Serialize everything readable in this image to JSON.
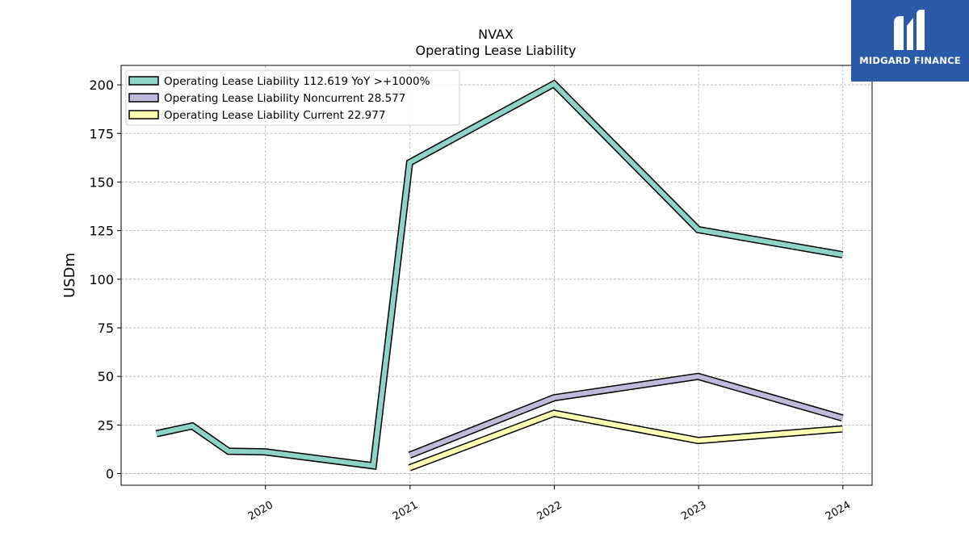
{
  "logo": {
    "text": "MIDGARD FINANCE",
    "icon": "midgard-m-logo-icon",
    "color": "#2a5aa8"
  },
  "chart_data": {
    "type": "line",
    "title": "NVAX",
    "subtitle": "Operating Lease Liability",
    "ylabel": "USDm",
    "xlabel": "",
    "x_ticks": [
      "2020",
      "2021",
      "2022",
      "2023",
      "2024"
    ],
    "y_ticks": [
      0,
      25,
      50,
      75,
      100,
      125,
      150,
      175,
      200
    ],
    "ylim": [
      -6,
      210
    ],
    "xlim": [
      "2019-01-01",
      "2024-03-15"
    ],
    "grid": true,
    "legend_position": "top-left",
    "series": [
      {
        "name": "Operating Lease Liability  112.619 YoY >+1000%",
        "color": "#8dd3c7",
        "points": [
          {
            "x": "2019-03-31",
            "y": 20.5
          },
          {
            "x": "2019-06-30",
            "y": 24.5
          },
          {
            "x": "2019-09-30",
            "y": 11.5
          },
          {
            "x": "2019-12-31",
            "y": 11.2
          },
          {
            "x": "2020-09-30",
            "y": 4.0
          },
          {
            "x": "2020-12-31",
            "y": 160.0
          },
          {
            "x": "2021-12-31",
            "y": 200.5
          },
          {
            "x": "2022-12-31",
            "y": 125.5
          },
          {
            "x": "2023-12-31",
            "y": 112.6
          }
        ]
      },
      {
        "name": "Operating Lease Liability Noncurrent  28.577",
        "color": "#bebada",
        "points": [
          {
            "x": "2020-12-31",
            "y": 9.5
          },
          {
            "x": "2021-12-31",
            "y": 39.0
          },
          {
            "x": "2022-12-31",
            "y": 50.0
          },
          {
            "x": "2023-12-31",
            "y": 28.6
          }
        ]
      },
      {
        "name": "Operating Lease Liability Current  22.977",
        "color": "#ffffb3",
        "points": [
          {
            "x": "2020-12-31",
            "y": 3.0
          },
          {
            "x": "2021-12-31",
            "y": 31.0
          },
          {
            "x": "2022-12-31",
            "y": 17.0
          },
          {
            "x": "2023-12-31",
            "y": 23.0
          }
        ]
      }
    ]
  }
}
